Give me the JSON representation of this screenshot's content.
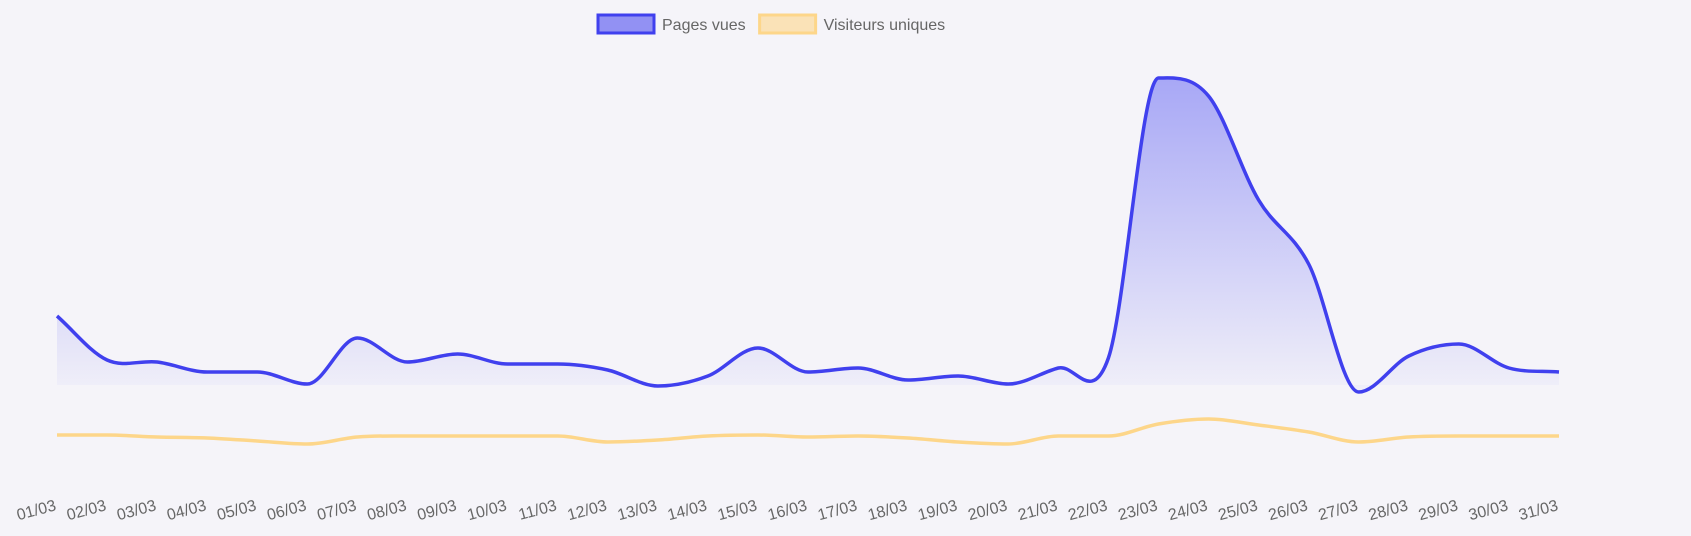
{
  "chart_data": {
    "type": "line",
    "categories": [
      "01/03",
      "02/03",
      "03/03",
      "04/03",
      "05/03",
      "06/03",
      "07/03",
      "08/03",
      "09/03",
      "10/03",
      "11/03",
      "12/03",
      "13/03",
      "14/03",
      "15/03",
      "16/03",
      "17/03",
      "18/03",
      "19/03",
      "20/03",
      "21/03",
      "22/03",
      "23/03",
      "24/03",
      "25/03",
      "26/03",
      "27/03",
      "28/03",
      "29/03",
      "30/03",
      "31/03"
    ],
    "series": [
      {
        "name": "Pages vues",
        "color": "#4040ee",
        "fill": true,
        "values": [
          41,
          30,
          29.5,
          27,
          27,
          24,
          35.5,
          29.5,
          31.5,
          29,
          29,
          27.5,
          23.5,
          26,
          33,
          27,
          28,
          25,
          26,
          24,
          28,
          30.5,
          100.5,
          96,
          70,
          54,
          22,
          31,
          34,
          28,
          27
        ]
      },
      {
        "name": "Visiteurs uniques",
        "color": "#fdd68a",
        "fill": false,
        "values": [
          11.25,
          11.25,
          10.75,
          10.5,
          9.75,
          9,
          10.75,
          11,
          11,
          11,
          11,
          9.5,
          10,
          11,
          11.25,
          10.75,
          11,
          10.5,
          9.5,
          9,
          11,
          11,
          14,
          15.25,
          13.75,
          12,
          9.5,
          10.75,
          11,
          11,
          11
        ]
      }
    ],
    "ylim": [
      0,
      105
    ],
    "grid": false,
    "legend": "top"
  }
}
